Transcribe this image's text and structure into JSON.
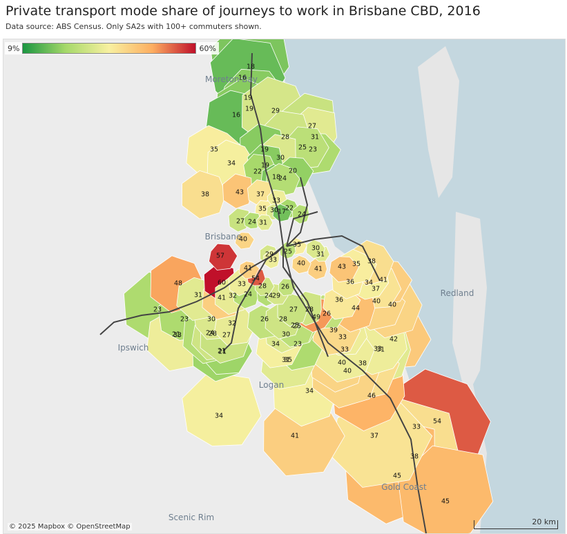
{
  "header": {
    "title": "Private transport mode share of journeys to work in Brisbane CBD, 2016",
    "subtitle": "Data source: ABS Census. Only SA2s with 100+ commuters shown."
  },
  "legend": {
    "min_label": "9%",
    "max_label": "60%",
    "min": 9,
    "max": 60
  },
  "attribution": "© 2025 Mapbox © OpenStreetMap",
  "scale_bar": {
    "label": "20 km"
  },
  "colors": {
    "low": "#1a9641",
    "mid": "#f8f0a0",
    "high": "#c0102a",
    "water": "#c4d7df",
    "land": "#ececec",
    "rail": "#444444"
  },
  "place_labels": [
    "Moreton Bay",
    "Brisbane",
    "Redland",
    "Ipswich",
    "Logan",
    "Gold Coast",
    "Scenic Rim"
  ],
  "regions": [
    {
      "v": 18
    },
    {
      "v": 16
    },
    {
      "v": 19
    },
    {
      "v": 16
    },
    {
      "v": 19
    },
    {
      "v": 29
    },
    {
      "v": 27
    },
    {
      "v": 31
    },
    {
      "v": 28
    },
    {
      "v": 25
    },
    {
      "v": 23
    },
    {
      "v": 35
    },
    {
      "v": 34
    },
    {
      "v": 19
    },
    {
      "v": 30
    },
    {
      "v": 19
    },
    {
      "v": 22
    },
    {
      "v": 20
    },
    {
      "v": 18
    },
    {
      "v": 24
    },
    {
      "v": 38
    },
    {
      "v": 43
    },
    {
      "v": 37
    },
    {
      "v": 33
    },
    {
      "v": 35
    },
    {
      "v": 30
    },
    {
      "v": 17
    },
    {
      "v": 22
    },
    {
      "v": 24
    },
    {
      "v": 27
    },
    {
      "v": 24
    },
    {
      "v": 31
    },
    {
      "v": 40
    },
    {
      "v": 35
    },
    {
      "v": 30
    },
    {
      "v": 29
    },
    {
      "v": 33
    },
    {
      "v": 25
    },
    {
      "v": 31
    },
    {
      "v": 57
    },
    {
      "v": 41
    },
    {
      "v": 40
    },
    {
      "v": 48
    },
    {
      "v": 60
    },
    {
      "v": 33
    },
    {
      "v": 54
    },
    {
      "v": 28
    },
    {
      "v": 43
    },
    {
      "v": 35
    },
    {
      "v": 38
    },
    {
      "v": 41
    },
    {
      "v": 36
    },
    {
      "v": 34
    },
    {
      "v": 37
    },
    {
      "v": 41
    },
    {
      "v": 31
    },
    {
      "v": 41
    },
    {
      "v": 32
    },
    {
      "v": 24
    },
    {
      "v": 24
    },
    {
      "v": 29
    },
    {
      "v": 26
    },
    {
      "v": 36
    },
    {
      "v": 40
    },
    {
      "v": 40
    },
    {
      "v": 44
    },
    {
      "v": 23
    },
    {
      "v": 23
    },
    {
      "v": 30
    },
    {
      "v": 32
    },
    {
      "v": 26
    },
    {
      "v": 28
    },
    {
      "v": 27
    },
    {
      "v": 28
    },
    {
      "v": 49
    },
    {
      "v": 26
    },
    {
      "v": 25
    },
    {
      "v": 39
    },
    {
      "v": 24
    },
    {
      "v": 27
    },
    {
      "v": 21
    },
    {
      "v": 30
    },
    {
      "v": 33
    },
    {
      "v": 42
    },
    {
      "v": 34
    },
    {
      "v": 23
    },
    {
      "v": 33
    },
    {
      "v": 31
    },
    {
      "v": 40
    },
    {
      "v": 33
    },
    {
      "v": 35
    },
    {
      "v": 21
    },
    {
      "v": 31
    },
    {
      "v": 38
    },
    {
      "v": 40
    },
    {
      "v": 34
    },
    {
      "v": 46
    },
    {
      "v": 34
    },
    {
      "v": 41
    },
    {
      "v": 37
    },
    {
      "v": 33
    },
    {
      "v": 54
    },
    {
      "v": 38
    },
    {
      "v": 45
    },
    {
      "v": 45
    },
    {
      "v": 21
    },
    {
      "v": 28
    },
    {
      "v": 33
    },
    {
      "v": 25
    }
  ]
}
